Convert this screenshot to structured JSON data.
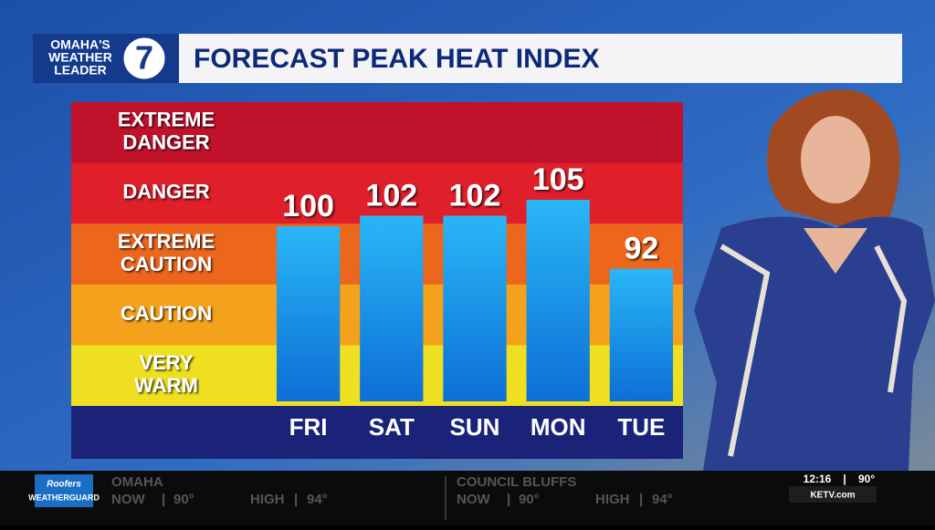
{
  "header": {
    "logo_lines": [
      "OMAHA'S",
      "WEATHER",
      "LEADER"
    ],
    "logo_number": "7"
  },
  "chart_data": {
    "type": "bar",
    "title": "FORECAST PEAK HEAT INDEX",
    "zones": [
      [
        "EXTREME",
        "DANGER"
      ],
      [
        "DANGER"
      ],
      [
        "EXTREME",
        "CAUTION"
      ],
      [
        "CAUTION"
      ],
      [
        "VERY",
        "WARM"
      ]
    ],
    "zone_colors": [
      "#c1122c",
      "#df1f2a",
      "#ec661c",
      "#f4a11c",
      "#eee020"
    ],
    "categories": [
      "FRI",
      "SAT",
      "SUN",
      "MON",
      "TUE"
    ],
    "values": [
      100,
      102,
      102,
      105,
      92
    ],
    "color": "#1a9be8",
    "ylim": [
      67,
      110
    ]
  },
  "ticker": {
    "sponsor": [
      "Roofers",
      "WEATHERGUARD"
    ],
    "cities": [
      {
        "name": "OMAHA",
        "now_label": "NOW",
        "now": "90°",
        "high_label": "HIGH",
        "high": "94°"
      },
      {
        "name": "COUNCIL BLUFFS",
        "now_label": "NOW",
        "now": "90°",
        "high_label": "HIGH",
        "high": "94°"
      }
    ],
    "time": "12:16",
    "temp": "90°",
    "site": "KETV.com"
  }
}
